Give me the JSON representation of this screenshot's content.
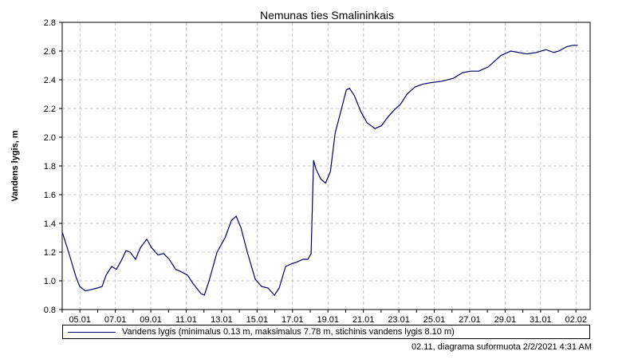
{
  "chart_data": {
    "type": "line",
    "title": "Nemunas ties Smalininkais",
    "ylabel": "Vandens lygis, m",
    "xlabel": "",
    "x_unit": "days since 04.01",
    "xlim": [
      0,
      29.8
    ],
    "ylim": [
      0.8,
      2.8
    ],
    "yticks": [
      0.8,
      1.0,
      1.2,
      1.4,
      1.6,
      1.8,
      2.0,
      2.2,
      2.4,
      2.6,
      2.8
    ],
    "ytick_labels": [
      "0.8",
      "1.0",
      "1.2",
      "1.4",
      "1.6",
      "1.8",
      "2.0",
      "2.2",
      "2.4",
      "2.6",
      "2.8"
    ],
    "xticks": [
      1,
      3,
      5,
      7,
      9,
      11,
      13,
      15,
      17,
      19,
      21,
      23,
      25,
      27,
      29
    ],
    "xtick_labels": [
      "05.01",
      "07.01",
      "09.01",
      "11.01",
      "13.01",
      "15.01",
      "17.01",
      "19.01",
      "21.01",
      "23.01",
      "25.01",
      "27.01",
      "29.01",
      "31.01",
      "02.02"
    ],
    "grid": true,
    "legend_position": "bottom",
    "series": [
      {
        "name": "Vandens lygis (minimalus 0.13 m, maksimalus 7.78 m, stichinis vandens lygis 8.10 m)",
        "color": "#000066",
        "x": [
          0,
          0.36,
          0.77,
          0.99,
          1.31,
          1.67,
          1.98,
          2.25,
          2.48,
          2.79,
          3.06,
          3.33,
          3.6,
          3.83,
          4.14,
          4.41,
          4.77,
          5.05,
          5.41,
          5.72,
          6.04,
          6.4,
          6.76,
          7.07,
          7.39,
          7.84,
          8.02,
          8.29,
          8.74,
          9.19,
          9.55,
          9.82,
          10.09,
          10.45,
          10.9,
          11.26,
          11.62,
          11.98,
          12.25,
          12.61,
          12.97,
          13.24,
          13.6,
          13.87,
          14.05,
          14.19,
          14.32,
          14.59,
          14.86,
          15.14,
          15.41,
          15.77,
          16.04,
          16.22,
          16.49,
          16.85,
          17.21,
          17.66,
          18.02,
          18.38,
          18.74,
          19.1,
          19.46,
          19.91,
          20.36,
          20.81,
          21.44,
          22.07,
          22.61,
          23.06,
          23.51,
          24.05,
          24.41,
          24.77,
          25.32,
          25.77,
          26.22,
          26.76,
          27.3,
          27.75,
          28.02,
          28.47,
          28.83,
          29.1
        ],
        "y": [
          1.34,
          1.2,
          1.03,
          0.96,
          0.93,
          0.94,
          0.95,
          0.96,
          1.04,
          1.1,
          1.08,
          1.14,
          1.21,
          1.2,
          1.15,
          1.23,
          1.29,
          1.23,
          1.18,
          1.19,
          1.15,
          1.08,
          1.06,
          1.04,
          0.98,
          0.91,
          0.9,
          1.0,
          1.2,
          1.3,
          1.42,
          1.45,
          1.37,
          1.2,
          1.01,
          0.96,
          0.95,
          0.9,
          0.95,
          1.1,
          1.12,
          1.13,
          1.15,
          1.15,
          1.19,
          1.84,
          1.78,
          1.71,
          1.68,
          1.76,
          2.03,
          2.2,
          2.33,
          2.34,
          2.29,
          2.18,
          2.1,
          2.06,
          2.08,
          2.14,
          2.19,
          2.23,
          2.3,
          2.35,
          2.37,
          2.38,
          2.39,
          2.41,
          2.45,
          2.46,
          2.46,
          2.49,
          2.53,
          2.57,
          2.6,
          2.59,
          2.58,
          2.59,
          2.61,
          2.59,
          2.6,
          2.63,
          2.64,
          2.64
        ]
      }
    ]
  },
  "footer": "02.11,  diagrama suformuota 2/2/2021 4:31 AM"
}
